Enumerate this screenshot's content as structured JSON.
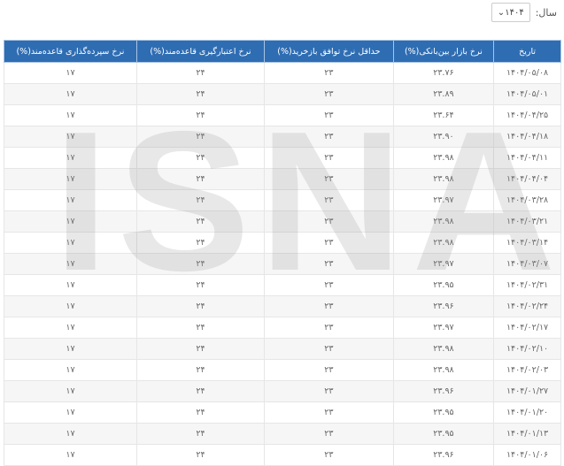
{
  "filter": {
    "label": "سال:",
    "value": "۱۴۰۴"
  },
  "watermark": "ISNA",
  "table": {
    "headers": [
      "تاریخ",
      "نرخ بازار بین‌بانکی(%)",
      "حداقل نرخ توافق بازخرید(%)",
      "نرخ اعتبارگیری قاعده‌مند(%)",
      "نرخ سپرده‌گذاری قاعده‌مند(%)"
    ],
    "rows": [
      [
        "۱۴۰۴/۰۵/۰۸",
        "۲۳.۷۶",
        "۲۳",
        "۲۴",
        "۱۷"
      ],
      [
        "۱۴۰۴/۰۵/۰۱",
        "۲۳.۸۹",
        "۲۳",
        "۲۴",
        "۱۷"
      ],
      [
        "۱۴۰۴/۰۴/۲۵",
        "۲۳.۶۴",
        "۲۳",
        "۲۴",
        "۱۷"
      ],
      [
        "۱۴۰۴/۰۴/۱۸",
        "۲۳.۹۰",
        "۲۳",
        "۲۴",
        "۱۷"
      ],
      [
        "۱۴۰۴/۰۴/۱۱",
        "۲۳.۹۸",
        "۲۳",
        "۲۴",
        "۱۷"
      ],
      [
        "۱۴۰۴/۰۴/۰۴",
        "۲۳.۹۸",
        "۲۳",
        "۲۴",
        "۱۷"
      ],
      [
        "۱۴۰۴/۰۳/۲۸",
        "۲۳.۹۷",
        "۲۳",
        "۲۴",
        "۱۷"
      ],
      [
        "۱۴۰۴/۰۳/۲۱",
        "۲۳.۹۸",
        "۲۳",
        "۲۴",
        "۱۷"
      ],
      [
        "۱۴۰۴/۰۳/۱۴",
        "۲۳.۹۸",
        "۲۳",
        "۲۴",
        "۱۷"
      ],
      [
        "۱۴۰۴/۰۳/۰۷",
        "۲۳.۹۷",
        "۲۳",
        "۲۴",
        "۱۷"
      ],
      [
        "۱۴۰۴/۰۲/۳۱",
        "۲۳.۹۵",
        "۲۳",
        "۲۴",
        "۱۷"
      ],
      [
        "۱۴۰۴/۰۲/۲۴",
        "۲۳.۹۶",
        "۲۳",
        "۲۴",
        "۱۷"
      ],
      [
        "۱۴۰۴/۰۲/۱۷",
        "۲۳.۹۷",
        "۲۳",
        "۲۴",
        "۱۷"
      ],
      [
        "۱۴۰۴/۰۲/۱۰",
        "۲۳.۹۸",
        "۲۳",
        "۲۴",
        "۱۷"
      ],
      [
        "۱۴۰۴/۰۲/۰۳",
        "۲۳.۹۸",
        "۲۳",
        "۲۴",
        "۱۷"
      ],
      [
        "۱۴۰۴/۰۱/۲۷",
        "۲۳.۹۶",
        "۲۳",
        "۲۴",
        "۱۷"
      ],
      [
        "۱۴۰۴/۰۱/۲۰",
        "۲۳.۹۵",
        "۲۳",
        "۲۴",
        "۱۷"
      ],
      [
        "۱۴۰۴/۰۱/۱۳",
        "۲۳.۹۵",
        "۲۳",
        "۲۴",
        "۱۷"
      ],
      [
        "۱۴۰۴/۰۱/۰۶",
        "۲۳.۹۶",
        "۲۳",
        "۲۴",
        "۱۷"
      ]
    ]
  },
  "colors": {
    "header": "#2f6db3"
  }
}
